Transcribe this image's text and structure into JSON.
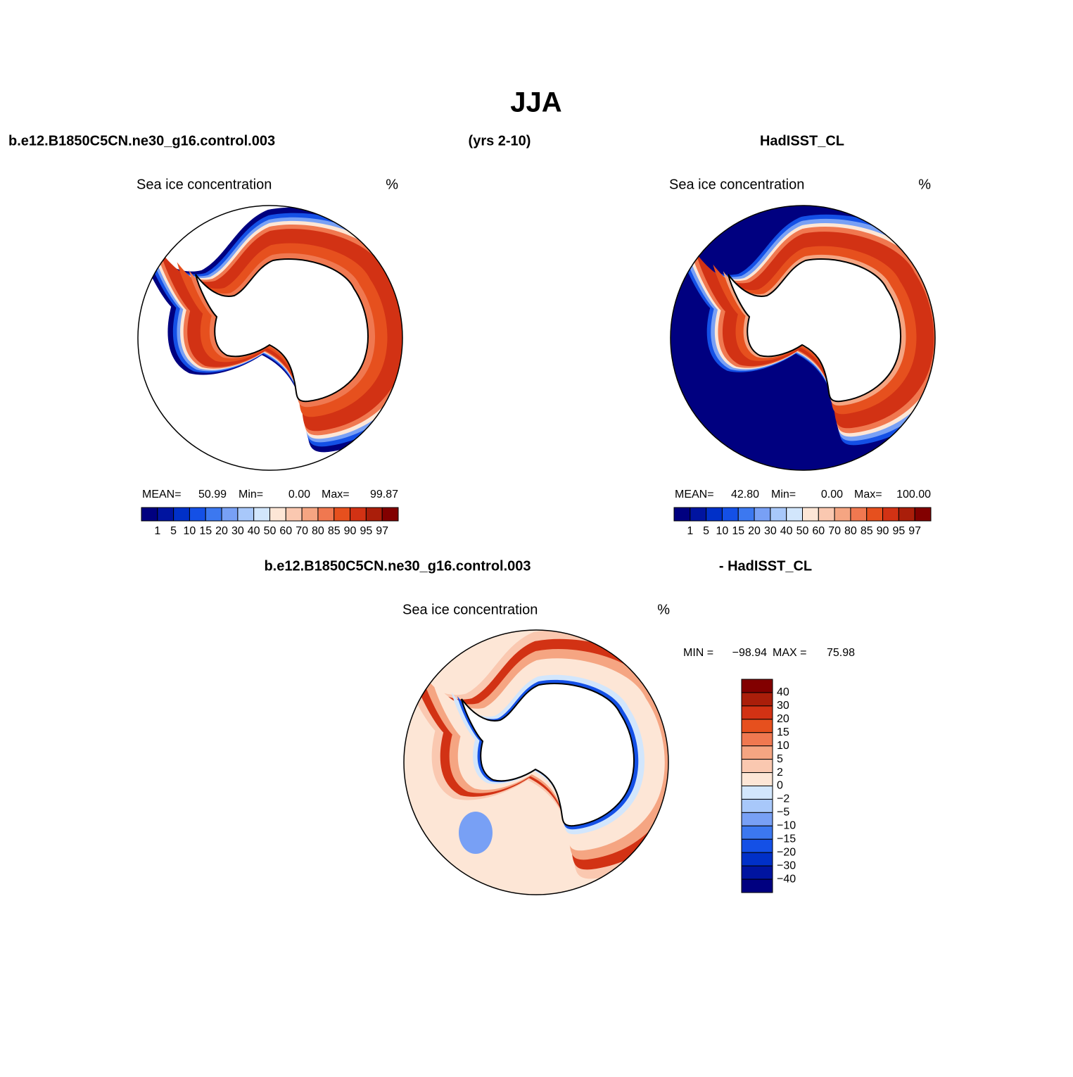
{
  "title": "JJA",
  "header": {
    "left": "b.e12.B1850C5CN.ne30_g16.control.003",
    "center": "(yrs 2-10)",
    "right": "HadISST_CL"
  },
  "panels": [
    {
      "title": "Sea ice concentration",
      "units": "%",
      "stats": [
        {
          "label": "MEAN=",
          "value": "50.99"
        },
        {
          "label": "Min=",
          "value": "0.00"
        },
        {
          "label": "Max=",
          "value": "99.87"
        }
      ]
    },
    {
      "title": "Sea ice concentration",
      "units": "%",
      "stats": [
        {
          "label": "MEAN=",
          "value": "42.80"
        },
        {
          "label": "Min=",
          "value": "0.00"
        },
        {
          "label": "Max=",
          "value": "100.00"
        }
      ]
    }
  ],
  "colorbar": {
    "labels": [
      "1",
      "5",
      "10",
      "15",
      "20",
      "30",
      "40",
      "50",
      "60",
      "70",
      "80",
      "85",
      "90",
      "95",
      "97"
    ],
    "colors": [
      "#000080",
      "#0014a0",
      "#0030c8",
      "#1450e6",
      "#3c78f0",
      "#78a0f5",
      "#a8c8fa",
      "#d2e6fc",
      "#fde6d6",
      "#fac8b0",
      "#f5a582",
      "#f07850",
      "#e6501e",
      "#d23214",
      "#aa1e0a",
      "#820000"
    ]
  },
  "difference": {
    "header_left": "b.e12.B1850C5CN.ne30_g16.control.003",
    "header_right": "- HadISST_CL",
    "title": "Sea ice concentration",
    "units": "%",
    "stats": [
      {
        "label": "MIN =",
        "value": "−98.94"
      },
      {
        "label": "MAX =",
        "value": "75.98"
      }
    ],
    "colorbar": {
      "labels": [
        "40",
        "30",
        "20",
        "15",
        "10",
        "5",
        "2",
        "0",
        "−2",
        "−5",
        "−10",
        "−15",
        "−20",
        "−30",
        "−40"
      ],
      "colors": [
        "#820000",
        "#aa1e0a",
        "#d23214",
        "#e6501e",
        "#f07850",
        "#f5a582",
        "#fac8b0",
        "#fde6d6",
        "#d2e6fc",
        "#a8c8fa",
        "#78a0f5",
        "#3c78f0",
        "#1450e6",
        "#0030c8",
        "#0014a0",
        "#000080"
      ]
    }
  }
}
